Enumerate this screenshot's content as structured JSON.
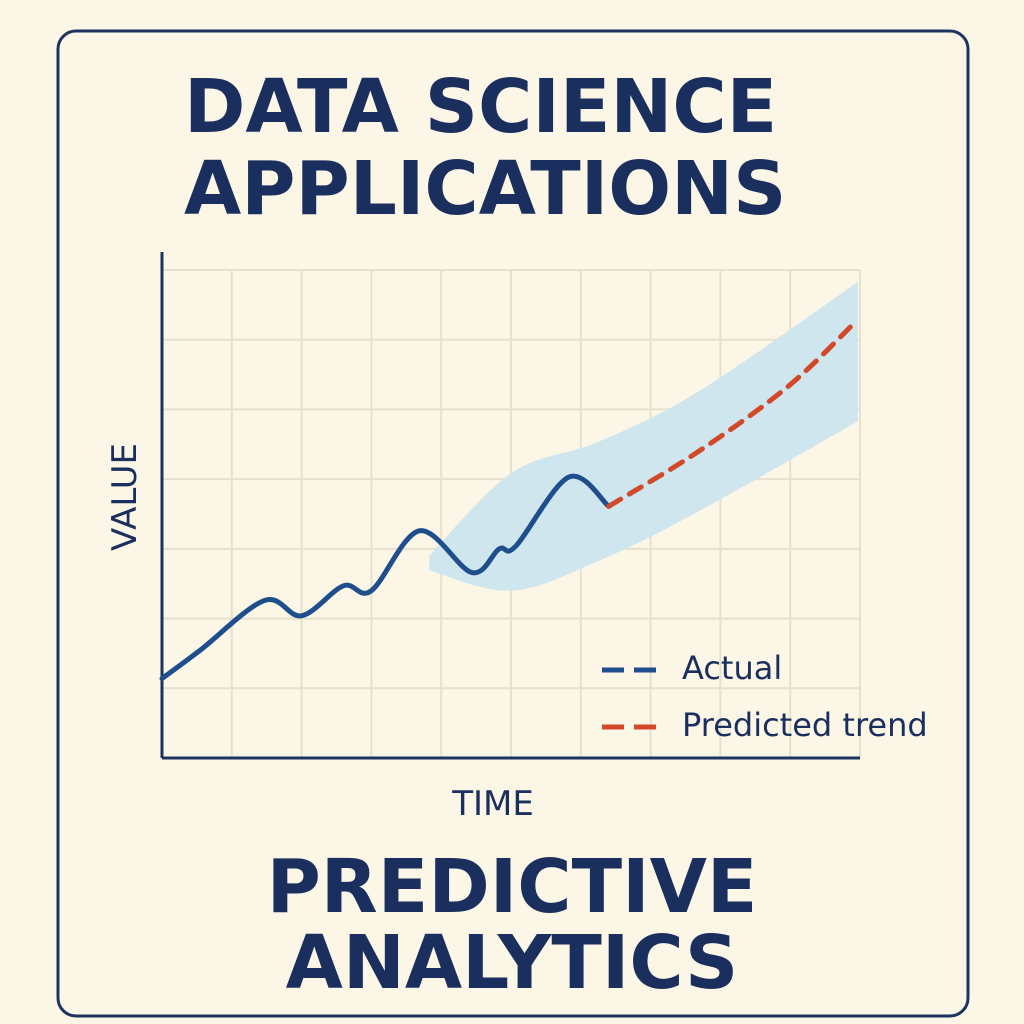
{
  "chart_data": {
    "type": "line",
    "title": [
      "DATA SCIENCE",
      "APPLICATIONS"
    ],
    "xlabel": "TIME",
    "ylabel": "VALUE",
    "xlim": [
      0,
      10
    ],
    "ylim": [
      0,
      7
    ],
    "series": [
      {
        "name": "Actual",
        "color": "#1f4e8c",
        "dashed": false,
        "x": [
          0,
          0.54,
          1.47,
          2.0,
          2.6,
          3.0,
          3.69,
          4.44,
          4.83,
          5.07,
          5.83,
          6.4
        ],
        "values": [
          1.14,
          1.54,
          2.26,
          2.04,
          2.47,
          2.4,
          3.26,
          2.66,
          3.0,
          3.04,
          4.03,
          3.61
        ]
      },
      {
        "name": "Predicted trend",
        "color": "#d2492a",
        "dashed": true,
        "x": [
          6.4,
          7.69,
          8.97,
          9.94
        ],
        "values": [
          3.61,
          4.4,
          5.33,
          6.26
        ]
      }
    ],
    "band": {
      "color": "#cfe6ef",
      "x": [
        3.83,
        5.01,
        6.26,
        7.69,
        9.97
      ],
      "lower": [
        2.69,
        2.4,
        2.83,
        3.54,
        4.83
      ],
      "upper": [
        2.9,
        4.09,
        4.54,
        5.26,
        6.83
      ]
    },
    "grid": true
  },
  "footer": [
    "PREDICTIVE",
    "ANALYTICS"
  ]
}
